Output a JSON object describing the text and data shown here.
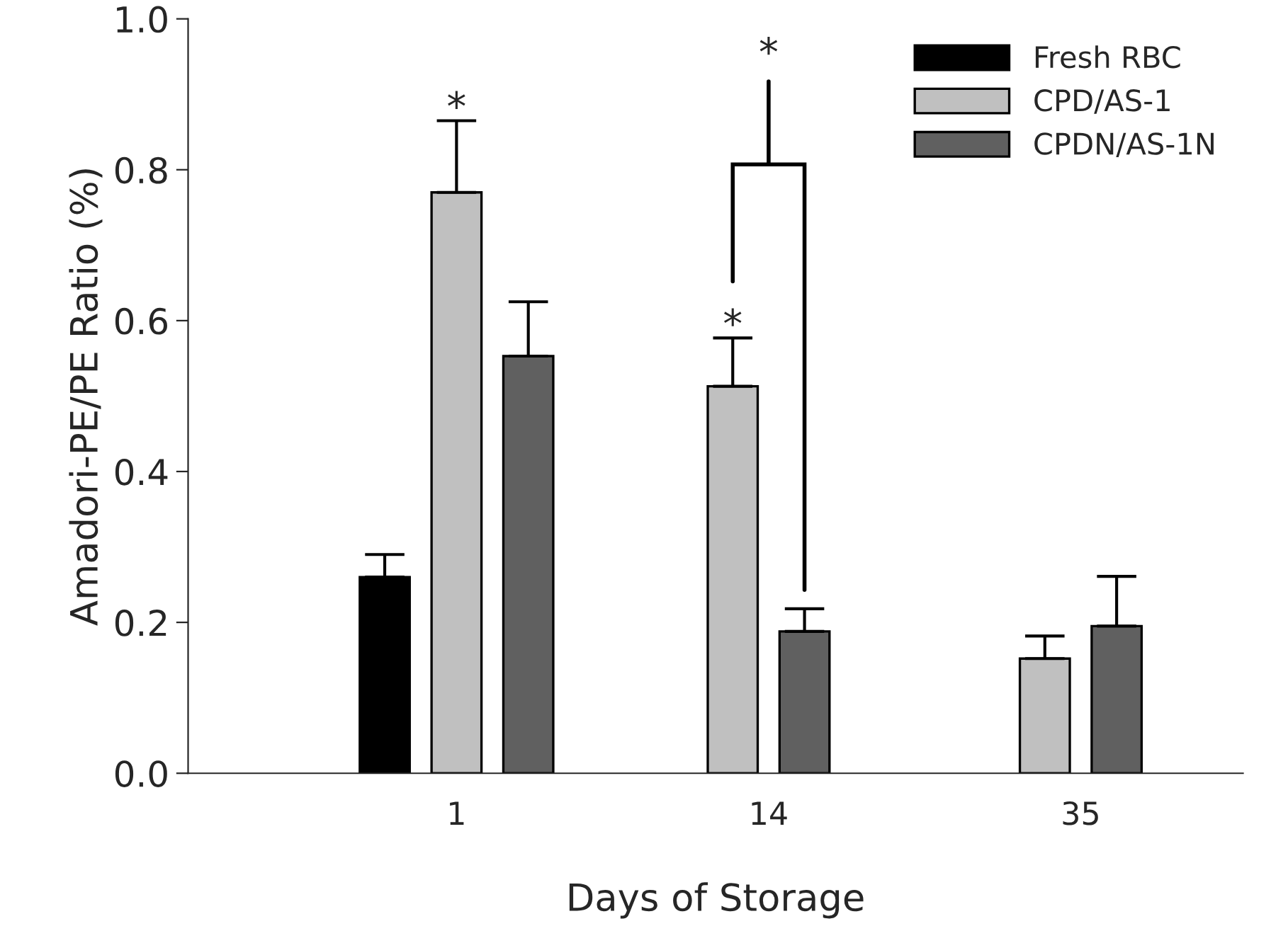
{
  "chart_data": {
    "type": "bar",
    "xlabel": "Days of Storage",
    "ylabel": "Amadori-PE/PE Ratio (%)",
    "categories": [
      "1",
      "14",
      "35"
    ],
    "series": [
      {
        "name": "Fresh RBC",
        "color": "#000000",
        "values": [
          0.26,
          null,
          null
        ],
        "errors": [
          [
            0.26,
            0.29
          ],
          null,
          null
        ]
      },
      {
        "name": "CPD/AS-1",
        "color": "#c0c0c0",
        "values": [
          0.77,
          0.513,
          0.152
        ],
        "errors": [
          [
            0.77,
            0.865
          ],
          [
            0.513,
            0.577
          ],
          [
            0.152,
            0.182
          ]
        ]
      },
      {
        "name": "CPDN/AS-1N",
        "color": "#606060",
        "values": [
          0.553,
          0.188,
          0.195
        ],
        "errors": [
          [
            0.553,
            0.625
          ],
          [
            0.188,
            0.218
          ],
          [
            0.195,
            0.261
          ]
        ]
      }
    ],
    "ylim": [
      0,
      1.0
    ],
    "yticks": [
      {
        "value": 0,
        "label": "0.0"
      },
      0.2,
      0.4,
      0.6,
      0.8,
      {
        "value": 1,
        "label": "1.0"
      }
    ],
    "annotations": [
      "*",
      "*",
      "*"
    ],
    "legend": "top right",
    "grid": false
  }
}
